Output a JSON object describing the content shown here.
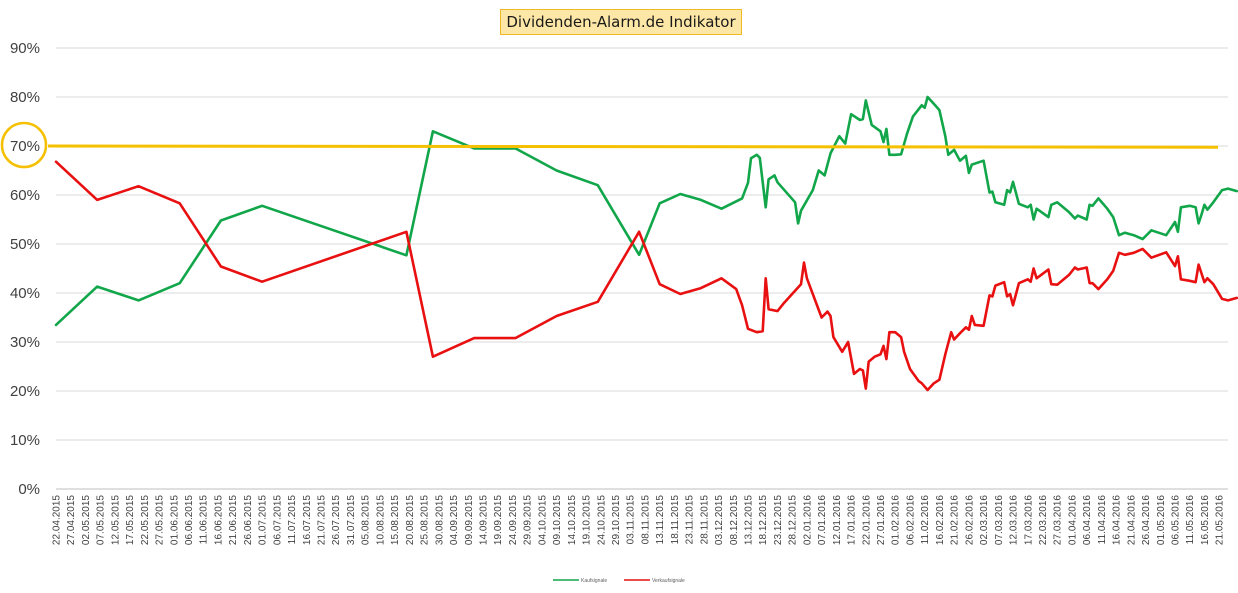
{
  "chart_data": {
    "type": "line",
    "title": "Dividenden-Alarm.de Indikator",
    "xlabel": "",
    "ylabel": "",
    "ylim": [
      0,
      90
    ],
    "y_tick_labels": [
      "0%",
      "10%",
      "20%",
      "30%",
      "40%",
      "50%",
      "60%",
      "70%",
      "80%",
      "90%"
    ],
    "grid": true,
    "legend_position": "bottom",
    "x_tick_labels": [
      "22.04.2015",
      "27.04.2015",
      "02.05.2015",
      "07.05.2015",
      "12.05.2015",
      "17.05.2015",
      "22.05.2015",
      "27.05.2015",
      "01.06.2015",
      "06.06.2015",
      "11.06.2015",
      "16.06.2015",
      "21.06.2015",
      "26.06.2015",
      "01.07.2015",
      "06.07.2015",
      "11.07.2015",
      "16.07.2015",
      "21.07.2015",
      "26.07.2015",
      "31.07.2015",
      "05.08.2015",
      "10.08.2015",
      "15.08.2015",
      "20.08.2015",
      "25.08.2015",
      "30.08.2015",
      "04.09.2015",
      "09.09.2015",
      "14.09.2015",
      "19.09.2015",
      "24.09.2015",
      "29.09.2015",
      "04.10.2015",
      "09.10.2015",
      "14.10.2015",
      "19.10.2015",
      "24.10.2015",
      "29.10.2015",
      "03.11.2015",
      "08.11.2015",
      "13.11.2015",
      "18.11.2015",
      "23.11.2015",
      "28.11.2015",
      "03.12.2015",
      "08.12.2015",
      "13.12.2015",
      "18.12.2015",
      "23.12.2015",
      "28.12.2015",
      "02.01.2016",
      "07.01.2016",
      "12.01.2016",
      "17.01.2016",
      "22.01.2016",
      "27.01.2016",
      "01.02.2016",
      "06.02.2016",
      "11.02.2016",
      "16.02.2016",
      "21.02.2016",
      "26.02.2016",
      "02.03.2016",
      "07.03.2016",
      "12.03.2016",
      "17.03.2016",
      "22.03.2016",
      "27.03.2016",
      "01.04.2016",
      "06.04.2016",
      "11.04.2016",
      "16.04.2016",
      "21.04.2016",
      "26.04.2016",
      "01.05.2016",
      "06.05.2016",
      "11.05.2016",
      "16.05.2016",
      "21.05.2016"
    ],
    "x_start": "2015-04-22",
    "x_end": "2016-05-24",
    "threshold": {
      "value": 70,
      "color": "#f5c000",
      "label": "70%"
    },
    "series": [
      {
        "name": "Kaufsignale",
        "color": "#12a64a",
        "points": [
          [
            "2015-04-22",
            33.5
          ],
          [
            "2015-05-06",
            41.3
          ],
          [
            "2015-05-20",
            38.5
          ],
          [
            "2015-06-03",
            42.0
          ],
          [
            "2015-06-17",
            54.8
          ],
          [
            "2015-07-01",
            57.8
          ],
          [
            "2015-08-19",
            47.7
          ],
          [
            "2015-08-28",
            73.0
          ],
          [
            "2015-09-11",
            69.5
          ],
          [
            "2015-09-25",
            69.5
          ],
          [
            "2015-10-09",
            65.0
          ],
          [
            "2015-10-23",
            62.0
          ],
          [
            "2015-11-06",
            47.8
          ],
          [
            "2015-11-13",
            58.3
          ],
          [
            "2015-11-20",
            60.2
          ],
          [
            "2015-11-27",
            59.0
          ],
          [
            "2015-12-04",
            57.2
          ],
          [
            "2015-12-11",
            59.3
          ],
          [
            "2015-12-13",
            62.5
          ],
          [
            "2015-12-14",
            67.5
          ],
          [
            "2015-12-16",
            68.2
          ],
          [
            "2015-12-17",
            67.6
          ],
          [
            "2015-12-19",
            57.5
          ],
          [
            "2015-12-20",
            63.2
          ],
          [
            "2015-12-22",
            64.0
          ],
          [
            "2015-12-23",
            62.6
          ],
          [
            "2015-12-29",
            58.5
          ],
          [
            "2015-12-30",
            54.2
          ],
          [
            "2015-12-31",
            56.8
          ],
          [
            "2016-01-04",
            61.0
          ],
          [
            "2016-01-06",
            65.0
          ],
          [
            "2016-01-08",
            64.0
          ],
          [
            "2016-01-10",
            68.5
          ],
          [
            "2016-01-13",
            72.0
          ],
          [
            "2016-01-15",
            70.5
          ],
          [
            "2016-01-17",
            76.5
          ],
          [
            "2016-01-20",
            75.3
          ],
          [
            "2016-01-21",
            75.5
          ],
          [
            "2016-01-22",
            79.3
          ],
          [
            "2016-01-24",
            74.3
          ],
          [
            "2016-01-27",
            73.0
          ],
          [
            "2016-01-28",
            70.8
          ],
          [
            "2016-01-29",
            73.5
          ],
          [
            "2016-01-30",
            68.2
          ],
          [
            "2016-02-01",
            68.2
          ],
          [
            "2016-02-03",
            68.3
          ],
          [
            "2016-02-05",
            72.5
          ],
          [
            "2016-02-07",
            76.0
          ],
          [
            "2016-02-10",
            78.3
          ],
          [
            "2016-02-11",
            77.8
          ],
          [
            "2016-02-12",
            80.0
          ],
          [
            "2016-02-15",
            78.0
          ],
          [
            "2016-02-16",
            77.3
          ],
          [
            "2016-02-18",
            72.0
          ],
          [
            "2016-02-19",
            68.2
          ],
          [
            "2016-02-21",
            69.2
          ],
          [
            "2016-02-23",
            67.0
          ],
          [
            "2016-02-25",
            68.0
          ],
          [
            "2016-02-26",
            64.5
          ],
          [
            "2016-02-27",
            66.2
          ],
          [
            "2016-03-02",
            67.0
          ],
          [
            "2016-03-04",
            60.5
          ],
          [
            "2016-03-05",
            60.7
          ],
          [
            "2016-03-06",
            58.5
          ],
          [
            "2016-03-09",
            58.0
          ],
          [
            "2016-03-10",
            61.0
          ],
          [
            "2016-03-11",
            60.5
          ],
          [
            "2016-03-12",
            62.7
          ],
          [
            "2016-03-14",
            58.2
          ],
          [
            "2016-03-17",
            57.5
          ],
          [
            "2016-03-18",
            58.0
          ],
          [
            "2016-03-19",
            55.0
          ],
          [
            "2016-03-20",
            57.2
          ],
          [
            "2016-03-24",
            55.5
          ],
          [
            "2016-03-25",
            58.0
          ],
          [
            "2016-03-27",
            58.5
          ],
          [
            "2016-03-31",
            56.5
          ],
          [
            "2016-04-02",
            55.2
          ],
          [
            "2016-04-03",
            55.8
          ],
          [
            "2016-04-06",
            55.0
          ],
          [
            "2016-04-07",
            58.0
          ],
          [
            "2016-04-08",
            57.8
          ],
          [
            "2016-04-10",
            59.3
          ],
          [
            "2016-04-13",
            57.2
          ],
          [
            "2016-04-15",
            55.5
          ],
          [
            "2016-04-17",
            51.8
          ],
          [
            "2016-04-19",
            52.3
          ],
          [
            "2016-04-22",
            51.8
          ],
          [
            "2016-04-25",
            51.0
          ],
          [
            "2016-04-28",
            52.8
          ],
          [
            "2016-05-03",
            51.8
          ],
          [
            "2016-05-06",
            54.5
          ],
          [
            "2016-05-07",
            52.5
          ],
          [
            "2016-05-08",
            57.5
          ],
          [
            "2016-05-11",
            57.8
          ],
          [
            "2016-05-13",
            57.5
          ],
          [
            "2016-05-14",
            54.2
          ],
          [
            "2016-05-15",
            56.0
          ],
          [
            "2016-05-16",
            58.0
          ],
          [
            "2016-05-17",
            57.0
          ],
          [
            "2016-05-19",
            58.5
          ],
          [
            "2016-05-22",
            61.0
          ],
          [
            "2016-05-24",
            61.3
          ],
          [
            "2016-05-27",
            60.8
          ]
        ]
      },
      {
        "name": "Verkaufsignale",
        "color": "#e81010",
        "points": [
          [
            "2015-04-22",
            66.8
          ],
          [
            "2015-05-06",
            59.0
          ],
          [
            "2015-05-20",
            61.8
          ],
          [
            "2015-06-03",
            58.3
          ],
          [
            "2015-06-17",
            45.4
          ],
          [
            "2015-07-01",
            42.3
          ],
          [
            "2015-08-19",
            52.5
          ],
          [
            "2015-08-28",
            27.0
          ],
          [
            "2015-09-11",
            30.8
          ],
          [
            "2015-09-25",
            30.8
          ],
          [
            "2015-10-09",
            35.3
          ],
          [
            "2015-10-23",
            38.2
          ],
          [
            "2015-11-06",
            52.5
          ],
          [
            "2015-11-13",
            41.8
          ],
          [
            "2015-11-20",
            39.8
          ],
          [
            "2015-11-27",
            41.0
          ],
          [
            "2015-12-04",
            43.0
          ],
          [
            "2015-12-09",
            40.8
          ],
          [
            "2015-12-11",
            37.5
          ],
          [
            "2015-12-13",
            32.7
          ],
          [
            "2015-12-16",
            32.0
          ],
          [
            "2015-12-18",
            32.2
          ],
          [
            "2015-12-19",
            43.0
          ],
          [
            "2015-12-20",
            36.7
          ],
          [
            "2015-12-23",
            36.3
          ],
          [
            "2015-12-25",
            37.8
          ],
          [
            "2015-12-31",
            41.8
          ],
          [
            "2016-01-01",
            46.2
          ],
          [
            "2016-01-02",
            43.0
          ],
          [
            "2016-01-07",
            35.0
          ],
          [
            "2016-01-09",
            36.2
          ],
          [
            "2016-01-10",
            35.3
          ],
          [
            "2016-01-11",
            31.0
          ],
          [
            "2016-01-14",
            28.0
          ],
          [
            "2016-01-16",
            30.0
          ],
          [
            "2016-01-18",
            23.5
          ],
          [
            "2016-01-20",
            24.5
          ],
          [
            "2016-01-21",
            24.2
          ],
          [
            "2016-01-22",
            20.5
          ],
          [
            "2016-01-23",
            26.0
          ],
          [
            "2016-01-25",
            27.0
          ],
          [
            "2016-01-27",
            27.5
          ],
          [
            "2016-01-28",
            29.2
          ],
          [
            "2016-01-29",
            26.5
          ],
          [
            "2016-01-30",
            32.0
          ],
          [
            "2016-02-01",
            32.0
          ],
          [
            "2016-02-03",
            31.0
          ],
          [
            "2016-02-04",
            28.0
          ],
          [
            "2016-02-06",
            24.5
          ],
          [
            "2016-02-09",
            22.0
          ],
          [
            "2016-02-10",
            21.6
          ],
          [
            "2016-02-12",
            20.2
          ],
          [
            "2016-02-14",
            21.5
          ],
          [
            "2016-02-16",
            22.3
          ],
          [
            "2016-02-18",
            27.5
          ],
          [
            "2016-02-20",
            32.0
          ],
          [
            "2016-02-21",
            30.5
          ],
          [
            "2016-02-23",
            31.8
          ],
          [
            "2016-02-25",
            33.0
          ],
          [
            "2016-02-26",
            32.5
          ],
          [
            "2016-02-27",
            35.3
          ],
          [
            "2016-02-28",
            33.5
          ],
          [
            "2016-03-02",
            33.3
          ],
          [
            "2016-03-04",
            39.5
          ],
          [
            "2016-03-05",
            39.3
          ],
          [
            "2016-03-06",
            41.5
          ],
          [
            "2016-03-09",
            42.2
          ],
          [
            "2016-03-10",
            39.3
          ],
          [
            "2016-03-11",
            39.8
          ],
          [
            "2016-03-12",
            37.5
          ],
          [
            "2016-03-14",
            42.0
          ],
          [
            "2016-03-17",
            42.8
          ],
          [
            "2016-03-18",
            42.3
          ],
          [
            "2016-03-19",
            45.0
          ],
          [
            "2016-03-20",
            43.0
          ],
          [
            "2016-03-24",
            44.8
          ],
          [
            "2016-03-25",
            41.8
          ],
          [
            "2016-03-27",
            41.7
          ],
          [
            "2016-03-31",
            43.7
          ],
          [
            "2016-04-02",
            45.2
          ],
          [
            "2016-04-03",
            44.8
          ],
          [
            "2016-04-06",
            45.2
          ],
          [
            "2016-04-07",
            42.0
          ],
          [
            "2016-04-08",
            42.0
          ],
          [
            "2016-04-10",
            40.8
          ],
          [
            "2016-04-13",
            42.8
          ],
          [
            "2016-04-15",
            44.5
          ],
          [
            "2016-04-17",
            48.2
          ],
          [
            "2016-04-19",
            47.8
          ],
          [
            "2016-04-22",
            48.2
          ],
          [
            "2016-04-25",
            49.0
          ],
          [
            "2016-04-28",
            47.2
          ],
          [
            "2016-05-03",
            48.3
          ],
          [
            "2016-05-06",
            45.5
          ],
          [
            "2016-05-07",
            47.5
          ],
          [
            "2016-05-08",
            42.8
          ],
          [
            "2016-05-11",
            42.5
          ],
          [
            "2016-05-13",
            42.2
          ],
          [
            "2016-05-14",
            45.8
          ],
          [
            "2016-05-15",
            44.0
          ],
          [
            "2016-05-16",
            42.2
          ],
          [
            "2016-05-17",
            43.0
          ],
          [
            "2016-05-19",
            41.8
          ],
          [
            "2016-05-22",
            38.8
          ],
          [
            "2016-05-24",
            38.5
          ],
          [
            "2016-05-27",
            39.0
          ]
        ]
      }
    ]
  }
}
